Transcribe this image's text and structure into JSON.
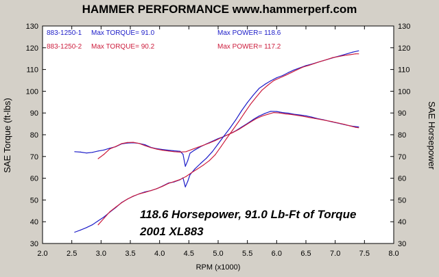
{
  "chart_data": {
    "type": "line",
    "title": "HAMMER PERFORMANCE www.hammerperf.com",
    "xlabel": "RPM (x1000)",
    "ylabel_left": "SAE Torque (ft-lbs)",
    "ylabel_right": "SAE Horsepower",
    "xlim": [
      2.0,
      8.0
    ],
    "ylim": [
      30,
      130
    ],
    "xticks": [
      "2.0",
      "2.5",
      "3.0",
      "3.5",
      "4.0",
      "4.5",
      "5.0",
      "5.5",
      "6.0",
      "6.5",
      "7.0",
      "7.5",
      "8.0"
    ],
    "yticks": [
      "30",
      "40",
      "50",
      "60",
      "70",
      "80",
      "90",
      "100",
      "110",
      "120",
      "130"
    ],
    "grid": false,
    "legend": {
      "rows": [
        {
          "run": "883-1250-1",
          "torque_text": "Max TORQUE= 91.0",
          "power_text": "Max POWER= 118.6",
          "color": "#1c1cc8"
        },
        {
          "run": "883-1250-2",
          "torque_text": "Max TORQUE= 90.2",
          "power_text": "Max POWER= 117.2",
          "color": "#cc1c3c"
        }
      ]
    },
    "annotations": [
      "118.6 Horsepower, 91.0 Lb-Ft of Torque",
      "2001 XL883"
    ],
    "series": [
      {
        "name": "883-1250-1 Torque",
        "color": "#1c1cc8",
        "x": [
          2.55,
          2.65,
          2.75,
          2.85,
          2.95,
          3.05,
          3.15,
          3.25,
          3.35,
          3.45,
          3.55,
          3.65,
          3.75,
          3.85,
          3.95,
          4.05,
          4.15,
          4.25,
          4.35,
          4.4,
          4.44,
          4.48,
          4.52,
          4.6,
          4.7,
          4.8,
          4.9,
          5.0,
          5.1,
          5.2,
          5.3,
          5.4,
          5.5,
          5.6,
          5.7,
          5.8,
          5.9,
          6.0,
          6.1,
          6.2,
          6.3,
          6.4,
          6.5,
          6.6,
          6.7,
          6.8,
          6.9,
          7.0,
          7.1,
          7.2,
          7.3,
          7.4
        ],
        "y": [
          72.2,
          72.0,
          71.6,
          71.9,
          72.5,
          73.0,
          73.8,
          74.5,
          75.8,
          76.2,
          76.3,
          76.0,
          75.4,
          74.2,
          73.6,
          73.2,
          72.9,
          72.6,
          72.4,
          71.0,
          65.5,
          68.0,
          71.5,
          73.0,
          74.5,
          75.8,
          77.0,
          78.2,
          79.2,
          80.4,
          81.8,
          83.5,
          85.2,
          87.0,
          88.6,
          89.8,
          90.8,
          90.7,
          90.2,
          89.9,
          89.4,
          89.1,
          88.7,
          88.1,
          87.4,
          86.9,
          86.2,
          85.6,
          85.0,
          84.4,
          83.9,
          83.6
        ]
      },
      {
        "name": "883-1250-2 Torque",
        "color": "#cc1c3c",
        "x": [
          2.95,
          3.05,
          3.15,
          3.25,
          3.35,
          3.45,
          3.55,
          3.65,
          3.75,
          3.85,
          3.95,
          4.05,
          4.15,
          4.25,
          4.35,
          4.45,
          4.55,
          4.65,
          4.75,
          4.85,
          4.95,
          5.05,
          5.15,
          5.25,
          5.35,
          5.45,
          5.55,
          5.65,
          5.75,
          5.85,
          5.95,
          6.05,
          6.15,
          6.25,
          6.35,
          6.45,
          6.55,
          6.65,
          6.75,
          6.85,
          6.95,
          7.05,
          7.15,
          7.25,
          7.35,
          7.4
        ],
        "y": [
          69.0,
          71.0,
          73.5,
          74.6,
          75.9,
          76.4,
          76.5,
          76.0,
          75.0,
          74.1,
          73.4,
          72.9,
          72.5,
          72.2,
          72.0,
          72.2,
          73.2,
          74.2,
          75.2,
          76.2,
          77.3,
          78.6,
          79.8,
          81.0,
          82.4,
          84.1,
          85.8,
          87.4,
          88.6,
          89.4,
          90.2,
          90.0,
          89.6,
          89.3,
          88.9,
          88.5,
          88.0,
          87.5,
          87.0,
          86.5,
          86.0,
          85.4,
          84.8,
          84.1,
          83.4,
          83.2
        ]
      },
      {
        "name": "883-1250-1 Power",
        "color": "#1c1cc8",
        "x": [
          2.55,
          2.65,
          2.75,
          2.85,
          2.95,
          3.05,
          3.15,
          3.25,
          3.35,
          3.45,
          3.55,
          3.65,
          3.75,
          3.85,
          3.95,
          4.05,
          4.15,
          4.25,
          4.35,
          4.4,
          4.44,
          4.48,
          4.52,
          4.6,
          4.7,
          4.8,
          4.9,
          5.0,
          5.1,
          5.2,
          5.3,
          5.4,
          5.5,
          5.6,
          5.7,
          5.8,
          5.9,
          6.0,
          6.1,
          6.2,
          6.3,
          6.4,
          6.5,
          6.6,
          6.7,
          6.8,
          6.9,
          7.0,
          7.1,
          7.2,
          7.3,
          7.4
        ],
        "y": [
          35.2,
          36.2,
          37.3,
          38.6,
          40.4,
          42.2,
          44.4,
          46.5,
          48.8,
          50.4,
          51.7,
          52.8,
          53.7,
          54.3,
          55.2,
          56.4,
          57.8,
          58.3,
          59.3,
          60.2,
          56.0,
          58.5,
          61.6,
          64.2,
          66.8,
          69.2,
          72.2,
          75.8,
          79.4,
          83.0,
          86.8,
          91.0,
          94.8,
          98.2,
          101.3,
          103.2,
          104.8,
          106.2,
          107.2,
          108.6,
          109.8,
          110.8,
          111.8,
          112.5,
          113.3,
          114.1,
          114.9,
          115.7,
          116.4,
          117.2,
          118.0,
          118.6
        ]
      },
      {
        "name": "883-1250-2 Power",
        "color": "#cc1c3c",
        "x": [
          2.95,
          3.05,
          3.15,
          3.25,
          3.35,
          3.45,
          3.55,
          3.65,
          3.75,
          3.85,
          3.95,
          4.05,
          4.15,
          4.25,
          4.35,
          4.45,
          4.55,
          4.65,
          4.75,
          4.85,
          4.95,
          5.05,
          5.15,
          5.25,
          5.35,
          5.45,
          5.55,
          5.65,
          5.75,
          5.85,
          5.95,
          6.05,
          6.15,
          6.25,
          6.35,
          6.45,
          6.55,
          6.65,
          6.75,
          6.85,
          6.95,
          7.05,
          7.15,
          7.25,
          7.35,
          7.4
        ],
        "y": [
          38.6,
          41.6,
          44.6,
          46.7,
          48.7,
          50.4,
          51.8,
          52.8,
          53.5,
          54.3,
          55.2,
          56.3,
          57.6,
          58.5,
          59.4,
          60.8,
          62.6,
          64.3,
          66.1,
          68.1,
          70.8,
          74.6,
          78.5,
          82.2,
          86.0,
          90.0,
          93.9,
          97.3,
          100.5,
          102.8,
          104.9,
          106.1,
          107.3,
          108.6,
          109.9,
          111.1,
          111.9,
          112.8,
          113.7,
          114.5,
          115.4,
          115.9,
          116.4,
          116.8,
          117.2,
          117.2
        ]
      }
    ]
  }
}
